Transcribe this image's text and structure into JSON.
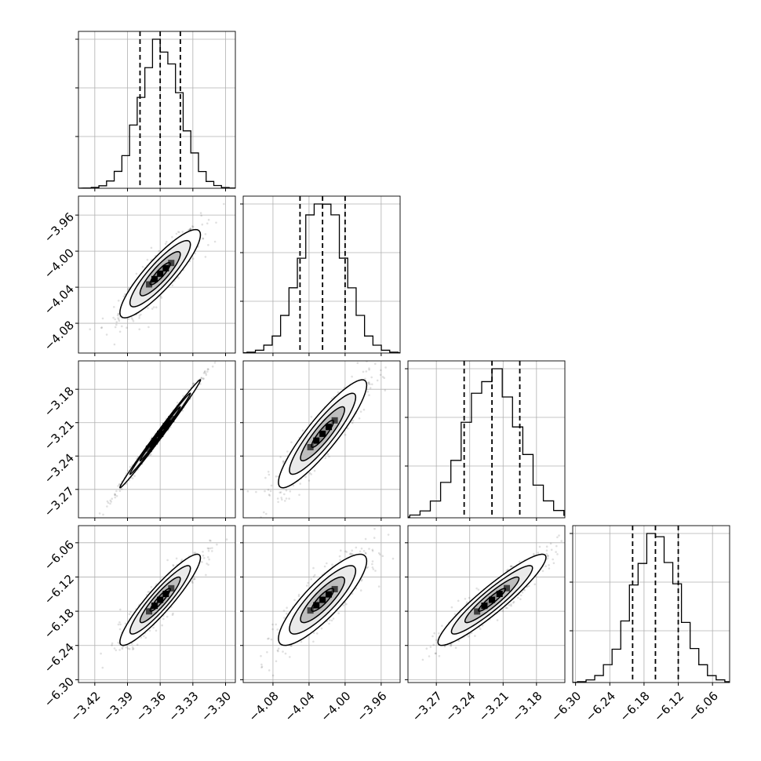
{
  "chart_data": {
    "type": "corner",
    "description": "",
    "parameters": [
      {
        "mean": -3.36,
        "std": 0.0185,
        "quantiles": [
          -3.3785,
          -3.36,
          -3.3415
        ],
        "ticks": [
          -3.42,
          -3.39,
          -3.36,
          -3.33,
          -3.3
        ],
        "tick_labels": [
          "−3.42",
          "−3.39",
          "−3.36",
          "−3.33",
          "−3.30"
        ],
        "xlim": [
          -3.435,
          -3.291
        ]
      },
      {
        "mean": -4.025,
        "std": 0.0245,
        "quantiles": [
          -4.05,
          -4.025,
          -4.0
        ],
        "ticks": [
          -4.08,
          -4.04,
          -4.0,
          -3.96
        ],
        "tick_labels": [
          "−4.08",
          "−4.04",
          "−4.00",
          "−3.96"
        ],
        "xlim": [
          -4.113,
          -3.939
        ]
      },
      {
        "mean": -3.22,
        "std": 0.0243,
        "quantiles": [
          -3.245,
          -3.22,
          -3.195
        ],
        "ticks": [
          -3.27,
          -3.24,
          -3.21,
          -3.18
        ],
        "tick_labels": [
          "−3.27",
          "−3.24",
          "−3.21",
          "−3.18"
        ],
        "xlim": [
          -3.2955,
          -3.1545
        ]
      },
      {
        "mean": -6.16,
        "std": 0.04,
        "quantiles": [
          -6.2,
          -6.16,
          -6.12
        ],
        "ticks": [
          -6.3,
          -6.24,
          -6.18,
          -6.12,
          -6.06
        ],
        "tick_labels": [
          "−6.30",
          "−6.24",
          "−6.18",
          "−6.12",
          "−6.06"
        ],
        "xlim": [
          -6.305,
          -6.03
        ]
      }
    ],
    "correlations": [
      [
        1.0,
        0.88,
        0.995,
        0.92
      ],
      [
        0.88,
        1.0,
        0.9,
        0.85
      ],
      [
        0.995,
        0.9,
        1.0,
        0.93
      ],
      [
        0.92,
        0.85,
        0.93,
        1.0
      ]
    ],
    "hist_peak_fraction": 0.09,
    "contour_levels": [
      0.118,
      0.393,
      0.675,
      0.864
    ],
    "quantile_lines": [
      0.16,
      0.5,
      0.84
    ],
    "grid": true,
    "colors": {
      "contour_fills": [
        "#ffffff",
        "#eaeaea",
        "#bdbdbd",
        "#8c8c8c",
        "#3f3f3f",
        "#000000"
      ],
      "points": "#000000"
    }
  }
}
